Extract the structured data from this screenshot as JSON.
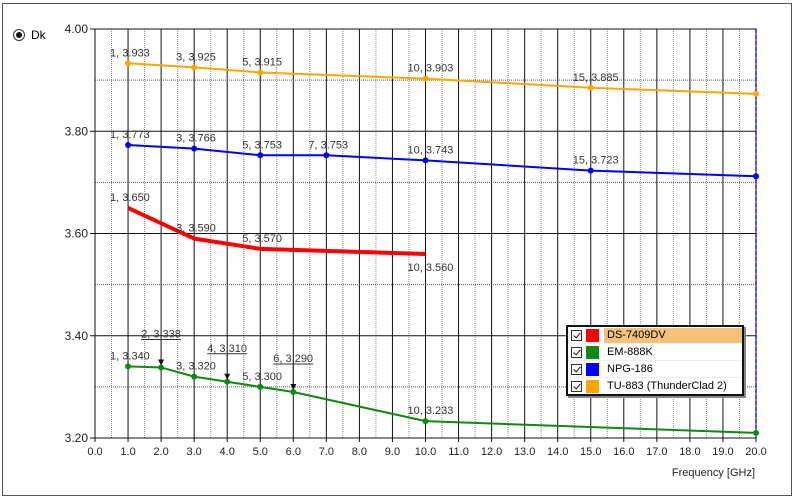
{
  "selector": {
    "label": "Dk",
    "selected": true
  },
  "legend": {
    "items": [
      {
        "label": "DS-7409DV",
        "color": "#ff0000",
        "checked": true,
        "selected": true
      },
      {
        "label": "EM-888K",
        "color": "#118811",
        "checked": true,
        "selected": false
      },
      {
        "label": "NPG-186",
        "color": "#0000ff",
        "checked": true,
        "selected": false
      },
      {
        "label": "TU-883 (ThunderClad 2)",
        "color": "#ffa500",
        "checked": true,
        "selected": false
      }
    ]
  },
  "chart_data": {
    "type": "line",
    "title": "",
    "xlabel": "Frequency [GHz]",
    "ylabel": "Dk",
    "xlim": [
      0,
      20
    ],
    "ylim": [
      3.2,
      4.0
    ],
    "x_ticks": [
      "0.0",
      "1.0",
      "2.0",
      "3.0",
      "4.0",
      "5.0",
      "6.0",
      "7.0",
      "8.0",
      "9.0",
      "10.0",
      "11.0",
      "12.0",
      "13.0",
      "14.0",
      "15.0",
      "16.0",
      "17.0",
      "18.0",
      "19.0",
      "20.0"
    ],
    "y_ticks": [
      "3.20",
      "3.40",
      "3.60",
      "3.80",
      "4.00"
    ],
    "grid": true,
    "legend_position": "lower right",
    "cursor_x": 20,
    "series": [
      {
        "name": "TU-883 (ThunderClad 2)",
        "color": "#ffa500",
        "width": 2,
        "points": [
          [
            1,
            3.933
          ],
          [
            3,
            3.925
          ],
          [
            5,
            3.915
          ],
          [
            10,
            3.903
          ],
          [
            15,
            3.885
          ],
          [
            20,
            3.873
          ]
        ],
        "labels": [
          [
            1,
            3.933,
            "1, 3.933"
          ],
          [
            3,
            3.925,
            "3, 3.925"
          ],
          [
            5,
            3.915,
            "5, 3.915"
          ],
          [
            10,
            3.903,
            "10, 3.903"
          ],
          [
            15,
            3.885,
            "15, 3.885"
          ]
        ]
      },
      {
        "name": "NPG-186",
        "color": "#0000ff",
        "width": 2,
        "points": [
          [
            1,
            3.773
          ],
          [
            3,
            3.766
          ],
          [
            5,
            3.753
          ],
          [
            7,
            3.753
          ],
          [
            10,
            3.743
          ],
          [
            15,
            3.723
          ],
          [
            20,
            3.712
          ]
        ],
        "labels": [
          [
            1,
            3.773,
            "1, 3.773"
          ],
          [
            3,
            3.766,
            "3, 3.766"
          ],
          [
            5,
            3.753,
            "5, 3.753"
          ],
          [
            7,
            3.753,
            "7, 3.753"
          ],
          [
            10,
            3.743,
            "10, 3.743"
          ],
          [
            15,
            3.723,
            "15, 3.723"
          ]
        ]
      },
      {
        "name": "DS-7409DV",
        "color": "#ff0000",
        "width": 4,
        "points": [
          [
            1,
            3.65
          ],
          [
            3,
            3.59
          ],
          [
            5,
            3.57
          ],
          [
            10,
            3.56
          ]
        ],
        "labels": [
          [
            1,
            3.65,
            "1, 3.650"
          ],
          [
            3,
            3.59,
            "3, 3.590"
          ],
          [
            5,
            3.57,
            "5, 3.570"
          ],
          [
            10,
            3.56,
            "10, 3.560"
          ]
        ]
      },
      {
        "name": "EM-888K",
        "color": "#118811",
        "width": 2,
        "points": [
          [
            1,
            3.34
          ],
          [
            2,
            3.338
          ],
          [
            3,
            3.32
          ],
          [
            4,
            3.31
          ],
          [
            5,
            3.3
          ],
          [
            6,
            3.29
          ],
          [
            10,
            3.233
          ],
          [
            20,
            3.21
          ]
        ],
        "labels": [
          [
            1,
            3.34,
            "1, 3.340"
          ],
          [
            3,
            3.32,
            "3, 3.320"
          ],
          [
            5,
            3.3,
            "5, 3.300"
          ],
          [
            10,
            3.233,
            "10, 3.233"
          ]
        ],
        "callouts": [
          [
            2,
            3.338,
            "2, 3.338"
          ],
          [
            4,
            3.31,
            "4, 3.310"
          ],
          [
            6,
            3.29,
            "6, 3.290"
          ]
        ]
      }
    ]
  }
}
